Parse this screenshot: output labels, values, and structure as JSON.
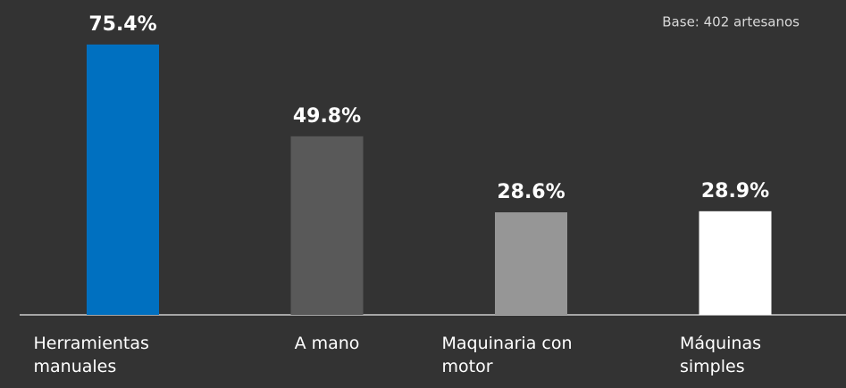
{
  "chart_data": {
    "type": "bar",
    "annotation": "Base: 402 artesanos",
    "categories": [
      "Herramientas manuales",
      "A mano",
      "Maquinaria con motor",
      "Máquinas simples"
    ],
    "values": [
      75.4,
      49.8,
      28.6,
      28.9
    ],
    "value_labels": [
      "75.4%",
      "49.8%",
      "28.6%",
      "28.9%"
    ],
    "colors": [
      "#0070c0",
      "#595959",
      "#969696",
      "#ffffff"
    ]
  }
}
